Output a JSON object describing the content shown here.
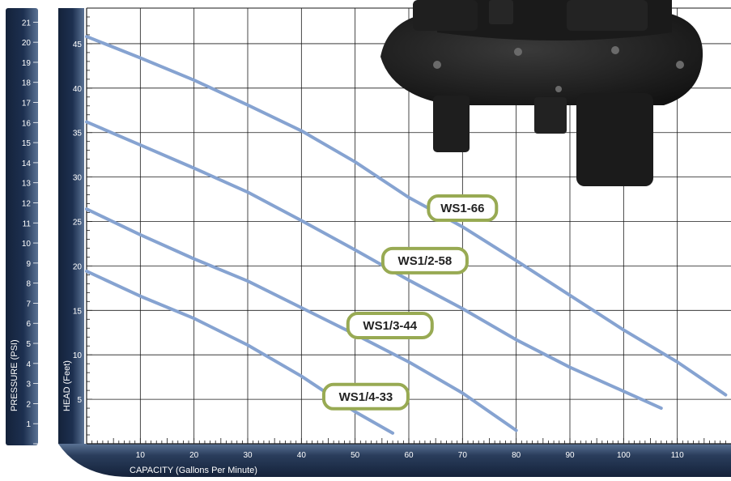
{
  "colors": {
    "curve": "#86a3d1",
    "pill_border": "#98aa53",
    "axis_band": "#14223a",
    "axis_band_light": "#5a7294",
    "grid": "#1a1a1a",
    "pump": "#1c1c1c"
  },
  "icons": {
    "pump_image": "sump-pump-icon"
  },
  "chart_data": {
    "type": "line",
    "title": "",
    "xlabel": "CAPACITY (Gallons Per Minute)",
    "ylabel": "HEAD (Feet)",
    "y2label": "PRESSURE (PSI)",
    "xlim": [
      0,
      120
    ],
    "ylim": [
      0,
      49
    ],
    "y2lim": [
      0,
      21.7
    ],
    "x_ticks": [
      10,
      20,
      30,
      40,
      50,
      60,
      70,
      80,
      90,
      100,
      110
    ],
    "y_ticks": [
      5,
      10,
      15,
      20,
      25,
      30,
      35,
      40,
      45
    ],
    "y2_ticks": [
      1,
      2,
      3,
      4,
      5,
      6,
      7,
      8,
      9,
      10,
      11,
      12,
      13,
      14,
      15,
      16,
      17,
      18,
      19,
      20,
      21
    ],
    "grid": true,
    "series": [
      {
        "name": "WS1-66",
        "x": [
          0,
          10,
          20,
          30,
          40,
          50,
          60,
          70,
          80,
          90,
          100,
          110,
          119
        ],
        "y": [
          45.8,
          43.4,
          40.9,
          38.1,
          35.2,
          31.7,
          27.7,
          24.4,
          20.6,
          16.7,
          12.8,
          9.2,
          5.5
        ]
      },
      {
        "name": "WS1/2-58",
        "x": [
          0,
          10,
          20,
          30,
          40,
          50,
          60,
          70,
          80,
          90,
          100,
          107
        ],
        "y": [
          36.2,
          33.6,
          31.0,
          28.3,
          25.1,
          21.8,
          18.4,
          15.2,
          11.7,
          8.6,
          5.9,
          4.0
        ]
      },
      {
        "name": "WS1/3-44",
        "x": [
          0,
          10,
          20,
          30,
          40,
          50,
          60,
          70,
          80
        ],
        "y": [
          26.4,
          23.5,
          20.8,
          18.3,
          15.3,
          12.3,
          9.2,
          5.7,
          1.5
        ]
      },
      {
        "name": "WS1/4-33",
        "x": [
          0,
          10,
          20,
          30,
          40,
          50,
          57
        ],
        "y": [
          19.4,
          16.6,
          14.1,
          11.1,
          7.6,
          3.6,
          1.2
        ]
      }
    ],
    "labels": [
      {
        "text": "WS1-66",
        "x": 70.0,
        "y": 26.5
      },
      {
        "text": "WS1/2-58",
        "x": 63.0,
        "y": 20.6
      },
      {
        "text": "WS1/3-44",
        "x": 56.5,
        "y": 13.3
      },
      {
        "text": "WS1/4-33",
        "x": 52.0,
        "y": 5.3
      }
    ]
  }
}
